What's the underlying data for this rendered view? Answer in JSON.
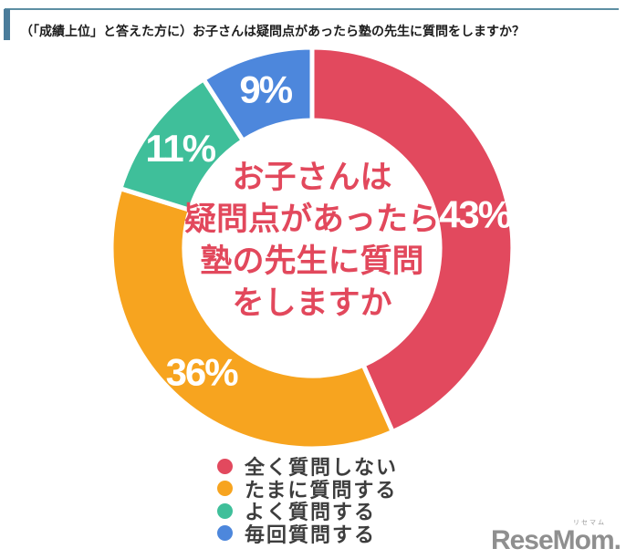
{
  "header": {
    "title": "（「成績上位」と答えた方に）お子さんは疑問点があったら塾の先生に質問をしますか？"
  },
  "chart_data": {
    "type": "pie",
    "donut": true,
    "start_angle_deg": 0,
    "direction": "clockwise",
    "value_suffix": "%",
    "slices": [
      {
        "label": "全く質問しない",
        "value": 43,
        "color": "#e2495e"
      },
      {
        "label": "たまに質問する",
        "value": 36,
        "color": "#f7a41f"
      },
      {
        "label": "よく質問する",
        "value": 11,
        "color": "#3fbf9a"
      },
      {
        "label": "毎回質問する",
        "value": 9,
        "color": "#4d87dc"
      }
    ],
    "center_text_lines": [
      "お子さんは",
      "疑問点があったら",
      "塾の先生に質問",
      "をしますか"
    ],
    "legend_position": "bottom"
  },
  "logo": {
    "text": "ReseMom.",
    "ruby": "リセマム"
  },
  "colors": {
    "accent_rule": "#5d8fa3",
    "title_bar": "#4a7c9b",
    "center_text": "#e2485c",
    "legend_text": "#3d3d3d",
    "percent_label": "#ffffff",
    "logo": "#8f8f8f"
  }
}
